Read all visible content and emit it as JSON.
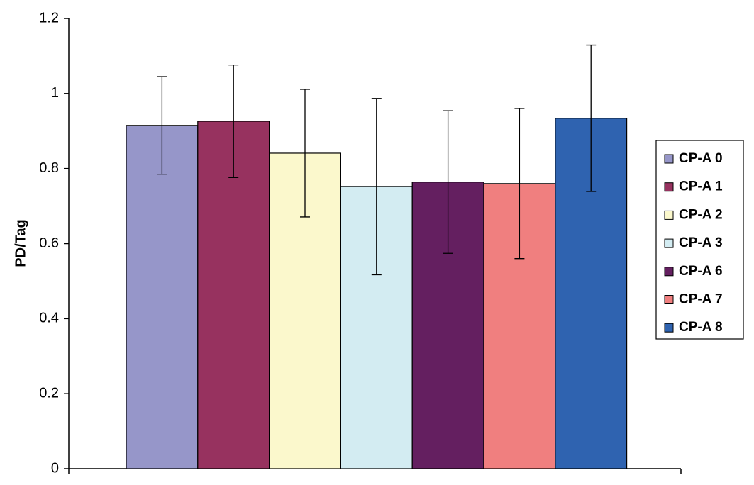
{
  "chart_data": {
    "type": "bar",
    "y_label": "PD/Tag",
    "ylim": [
      0,
      1.2
    ],
    "yticks": [
      0,
      0.2,
      0.4,
      0.6,
      0.8,
      1,
      1.2
    ],
    "legend": "right",
    "series": [
      {
        "name": "CP-A 0",
        "color": "#9696c9",
        "values": [
          0.915
        ],
        "errors": [
          0.13
        ]
      },
      {
        "name": "CP-A 1",
        "color": "#97325f",
        "values": [
          0.926
        ],
        "errors": [
          0.15
        ]
      },
      {
        "name": "CP-A 2",
        "color": "#fbf8cc",
        "values": [
          0.841
        ],
        "errors": [
          0.17
        ]
      },
      {
        "name": "CP-A 3",
        "color": "#d3ecf2",
        "values": [
          0.752
        ],
        "errors": [
          0.235
        ]
      },
      {
        "name": "CP-A 6",
        "color": "#641f60",
        "values": [
          0.764
        ],
        "errors": [
          0.19
        ]
      },
      {
        "name": "CP-A 7",
        "color": "#f07f7f",
        "values": [
          0.76
        ],
        "errors": [
          0.2
        ]
      },
      {
        "name": "CP-A 8",
        "color": "#2f63b0",
        "values": [
          0.934
        ],
        "errors": [
          0.195
        ]
      }
    ]
  }
}
